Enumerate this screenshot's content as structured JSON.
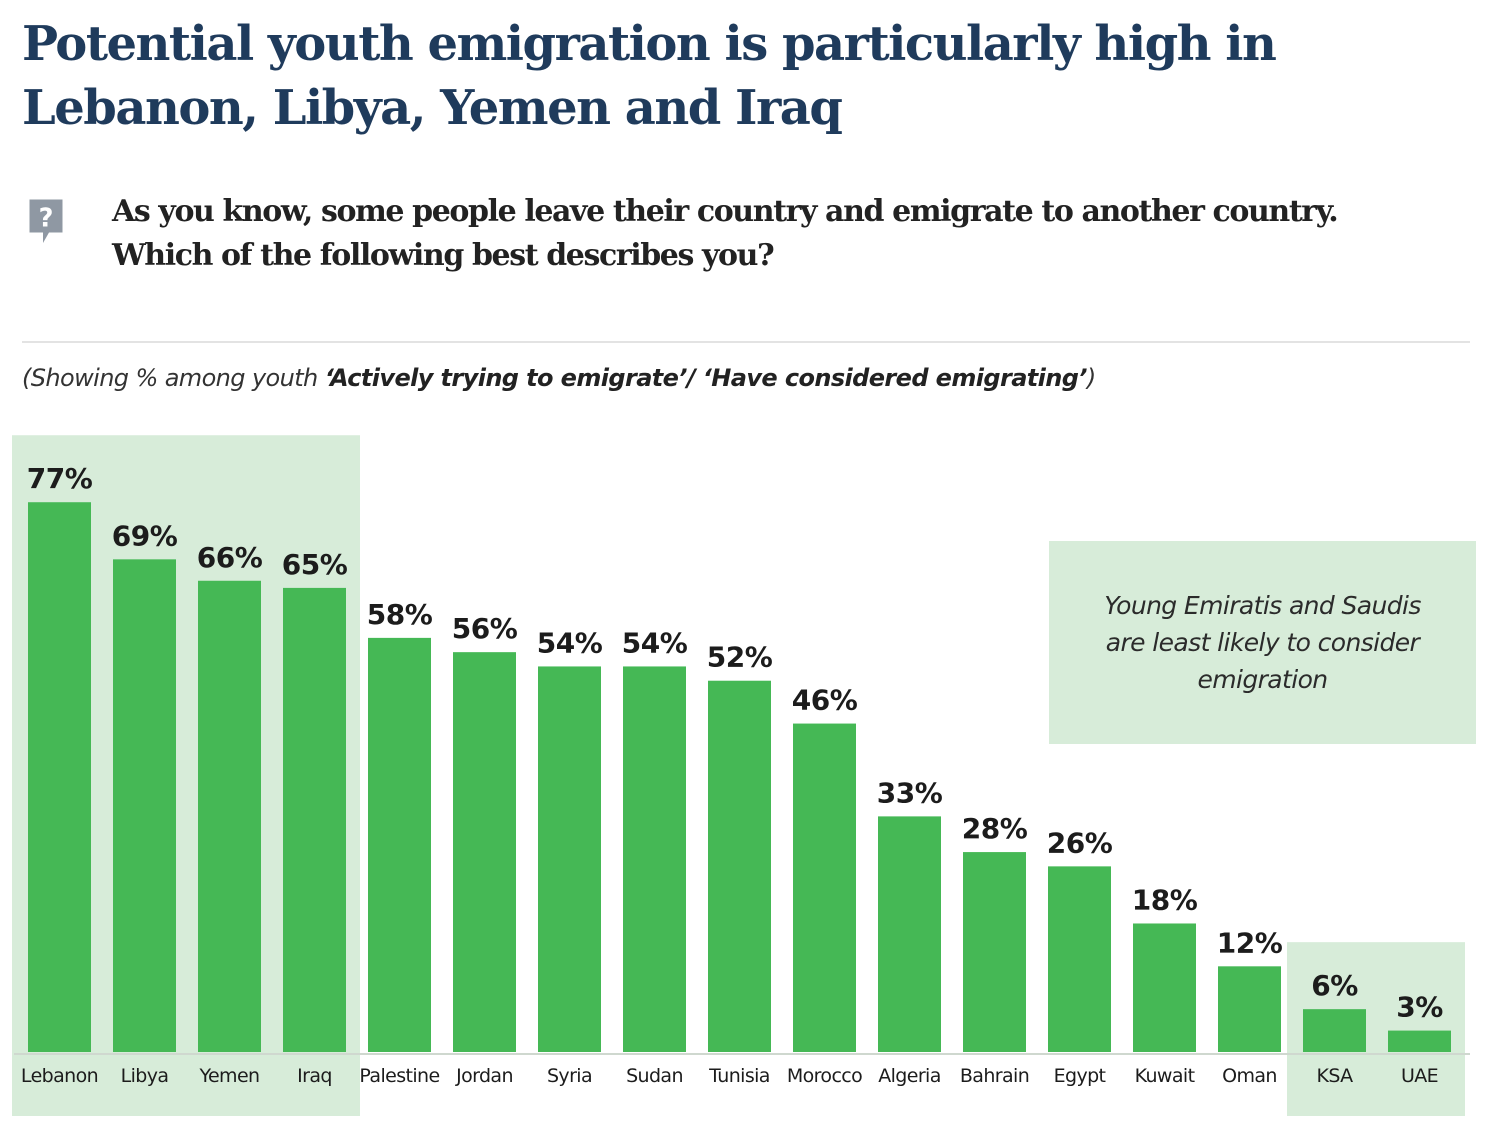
{
  "header": {
    "title": "Potential youth emigration is particularly high in Lebanon, Libya, Yemen and Iraq",
    "question_line1": "As you know, some people leave their country and emigrate to another country.",
    "question_line2": "Which of the following best describes you?",
    "question_icon": "question-mark-speech-bubble-icon",
    "subtitle_prefix": "(Showing % among youth ",
    "subtitle_bold": "‘Actively trying to emigrate’/ ‘Have considered emigrating’",
    "subtitle_suffix": ")"
  },
  "callout": {
    "text": "Young Emiratis and Saudis are least likely to consider emigration"
  },
  "colors": {
    "bar": "#45b855",
    "highlight": "#d7ecd9",
    "title": "#1f3b5c",
    "icon": "#8f98a3"
  },
  "chart_data": {
    "type": "bar",
    "categories": [
      "Lebanon",
      "Libya",
      "Yemen",
      "Iraq",
      "Palestine",
      "Jordan",
      "Syria",
      "Sudan",
      "Tunisia",
      "Morocco",
      "Algeria",
      "Bahrain",
      "Egypt",
      "Kuwait",
      "Oman",
      "KSA",
      "UAE"
    ],
    "values": [
      77,
      69,
      66,
      65,
      58,
      56,
      54,
      54,
      52,
      46,
      33,
      28,
      26,
      18,
      12,
      6,
      3
    ],
    "value_labels": [
      "77%",
      "69%",
      "66%",
      "65%",
      "58%",
      "56%",
      "54%",
      "54%",
      "52%",
      "46%",
      "33%",
      "28%",
      "26%",
      "18%",
      "12%",
      "6%",
      "3%"
    ],
    "highlighted_groups": [
      [
        "Lebanon",
        "Libya",
        "Yemen",
        "Iraq"
      ],
      [
        "KSA",
        "UAE"
      ]
    ],
    "unit": "%",
    "ylim": [
      0,
      100
    ],
    "grid": false,
    "legend": "none"
  }
}
